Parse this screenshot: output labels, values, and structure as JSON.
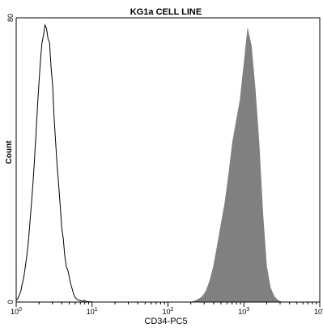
{
  "chart_data": {
    "type": "histogram",
    "title": "KG1a CELL LINE",
    "xlabel": "CD34-PC5",
    "ylabel": "Count",
    "x_scale": "log",
    "xlim": [
      1,
      10000
    ],
    "ylim": [
      0,
      80
    ],
    "x_ticks": [
      {
        "value": 1,
        "base": "10",
        "exp": "0"
      },
      {
        "value": 10,
        "base": "10",
        "exp": "1"
      },
      {
        "value": 100,
        "base": "10",
        "exp": "2"
      },
      {
        "value": 1000,
        "base": "10",
        "exp": "3"
      },
      {
        "value": 10000,
        "base": "10",
        "exp": "4"
      }
    ],
    "y_ticks": [
      {
        "value": 0,
        "label": "0"
      },
      {
        "value": 80,
        "label": "80"
      }
    ],
    "series": [
      {
        "style": "outline",
        "color": "#000000",
        "x": [
          1.0,
          1.05,
          1.1,
          1.15,
          1.2,
          1.26,
          1.32,
          1.38,
          1.45,
          1.51,
          1.58,
          1.66,
          1.74,
          1.82,
          1.91,
          2.0,
          2.09,
          2.19,
          2.29,
          2.4,
          2.51,
          2.63,
          2.75,
          2.88,
          3.02,
          3.16,
          3.31,
          3.47,
          3.63,
          3.8,
          3.98,
          4.17,
          4.37,
          4.57,
          4.79,
          5.01,
          5.25,
          5.5,
          5.75,
          6.03,
          6.31,
          6.61,
          6.92,
          7.24,
          7.59,
          7.94,
          8.32,
          8.71,
          9.12,
          9.55,
          10.0
        ],
        "y": [
          0.5,
          1,
          2,
          3,
          5,
          7,
          10,
          13,
          17,
          22,
          27,
          33,
          40,
          47,
          55,
          62,
          68,
          73,
          75,
          78,
          77,
          74,
          73,
          66,
          61,
          52,
          45,
          38,
          33,
          27,
          21,
          18,
          13,
          10,
          9,
          7,
          5,
          3.5,
          2,
          1.2,
          0.8,
          0.5,
          0.5,
          0.3,
          0.2,
          0.5,
          0.2,
          0.1,
          0.1,
          0.1,
          0
        ]
      },
      {
        "style": "filled",
        "color": "#808080",
        "x": [
          200,
          224,
          251,
          282,
          316,
          355,
          398,
          447,
          501,
          562,
          631,
          708,
          794,
          891,
          1000,
          1122,
          1259,
          1413,
          1585,
          1778,
          1995,
          2239,
          2512,
          2818,
          3162
        ],
        "y": [
          0,
          0.3,
          0.8,
          1.5,
          3,
          6,
          10,
          16,
          22,
          28,
          36,
          45,
          51,
          57,
          67,
          77,
          72,
          60,
          45,
          25,
          10,
          4,
          1.5,
          0.5,
          0
        ]
      }
    ]
  }
}
